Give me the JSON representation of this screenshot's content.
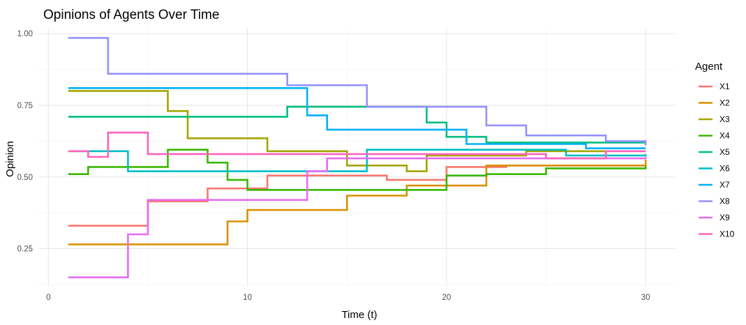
{
  "chart_data": {
    "type": "line",
    "step": true,
    "title": "Opinions of Agents Over Time",
    "xlabel": "Time (t)",
    "ylabel": "Opinion",
    "xlim": [
      -0.5,
      31.5
    ],
    "ylim": [
      0.12,
      1.02
    ],
    "x_ticks": [
      0,
      10,
      20,
      30
    ],
    "y_ticks": [
      0.25,
      0.5,
      0.75,
      1.0
    ],
    "x_tick_labels": [
      "0",
      "10",
      "20",
      "30"
    ],
    "y_tick_labels": [
      "0.25",
      "0.50",
      "0.75",
      "1.00"
    ],
    "grid": true,
    "legend": {
      "title": "Agent",
      "position": "right"
    },
    "series": [
      {
        "name": "X1",
        "color": "#F8766D",
        "x": [
          1,
          5,
          8,
          9,
          11,
          17,
          20,
          23,
          30
        ],
        "y": [
          0.33,
          0.415,
          0.46,
          0.46,
          0.505,
          0.49,
          0.535,
          0.54,
          0.56
        ]
      },
      {
        "name": "X2",
        "color": "#D89000",
        "x": [
          1,
          9,
          10,
          15,
          18,
          22,
          30
        ],
        "y": [
          0.265,
          0.345,
          0.385,
          0.435,
          0.47,
          0.54,
          0.56
        ]
      },
      {
        "name": "X3",
        "color": "#A3A500",
        "x": [
          1,
          6,
          7,
          11,
          15,
          18,
          19,
          24,
          30
        ],
        "y": [
          0.8,
          0.73,
          0.635,
          0.59,
          0.54,
          0.52,
          0.575,
          0.59,
          0.59
        ]
      },
      {
        "name": "X4",
        "color": "#39B600",
        "x": [
          1,
          2,
          6,
          8,
          9,
          10,
          20,
          22,
          25,
          30
        ],
        "y": [
          0.51,
          0.535,
          0.595,
          0.55,
          0.49,
          0.455,
          0.505,
          0.51,
          0.53,
          0.54
        ]
      },
      {
        "name": "X5",
        "color": "#00BF7D",
        "x": [
          1,
          12,
          19,
          20,
          22,
          30
        ],
        "y": [
          0.71,
          0.745,
          0.69,
          0.64,
          0.62,
          0.62
        ]
      },
      {
        "name": "X6",
        "color": "#00BFC4",
        "x": [
          1,
          4,
          16,
          26,
          30
        ],
        "y": [
          0.59,
          0.52,
          0.595,
          0.575,
          0.58
        ]
      },
      {
        "name": "X7",
        "color": "#00B0F6",
        "x": [
          1,
          13,
          14,
          21,
          27,
          30
        ],
        "y": [
          0.81,
          0.715,
          0.665,
          0.615,
          0.6,
          0.6
        ]
      },
      {
        "name": "X8",
        "color": "#9590FF",
        "x": [
          1,
          3,
          12,
          16,
          22,
          24,
          28,
          30
        ],
        "y": [
          0.985,
          0.86,
          0.82,
          0.745,
          0.68,
          0.645,
          0.625,
          0.61
        ]
      },
      {
        "name": "X9",
        "color": "#E76BF3",
        "x": [
          1,
          4,
          5,
          7,
          13,
          14,
          30
        ],
        "y": [
          0.15,
          0.3,
          0.42,
          0.42,
          0.52,
          0.565,
          0.57
        ]
      },
      {
        "name": "X10",
        "color": "#FF62BC",
        "x": [
          1,
          2,
          3,
          5,
          25,
          28,
          30
        ],
        "y": [
          0.59,
          0.57,
          0.655,
          0.58,
          0.565,
          0.59,
          0.59
        ]
      }
    ]
  }
}
